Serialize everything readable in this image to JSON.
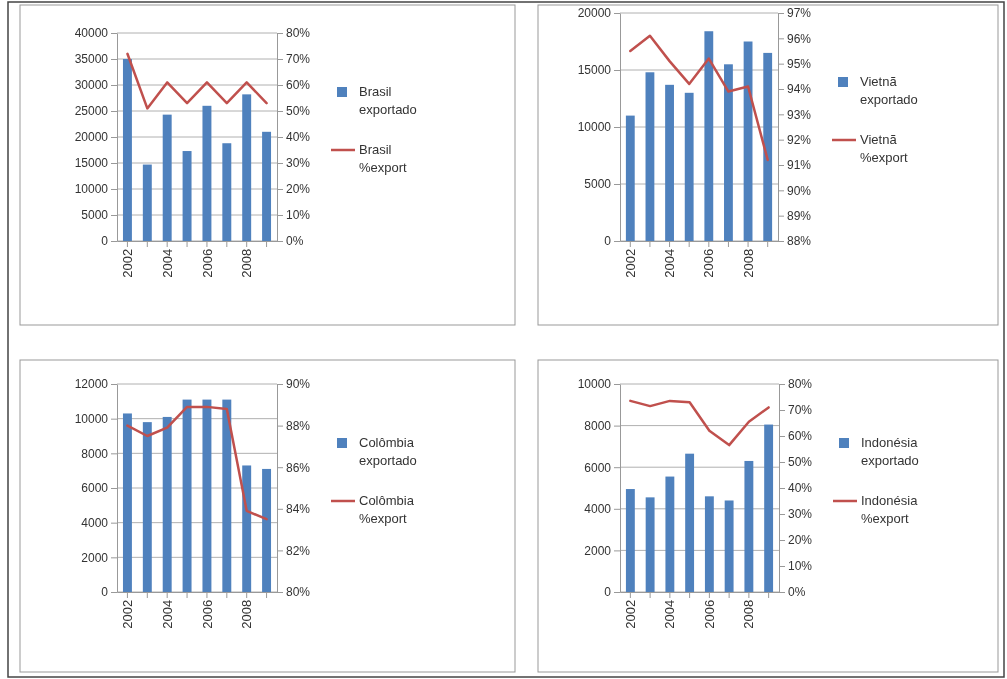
{
  "chart_data": [
    {
      "type": "bar",
      "categories": [
        "2002",
        null,
        "2004",
        null,
        "2006",
        null,
        "2008",
        null
      ],
      "ylim": [
        0,
        40000
      ],
      "yticks": [
        0,
        5000,
        10000,
        15000,
        20000,
        25000,
        30000,
        35000,
        40000
      ],
      "y2lim": [
        0,
        80
      ],
      "y2ticks": [
        {
          "value": 0,
          "label": "0%"
        },
        {
          "value": 10,
          "label": "10%"
        },
        {
          "value": 20,
          "label": "20%"
        },
        {
          "value": 30,
          "label": "30%"
        },
        {
          "value": 40,
          "label": "40%"
        },
        {
          "value": 50,
          "label": "50%"
        },
        {
          "value": 60,
          "label": "60%"
        },
        {
          "value": 70,
          "label": "70%"
        },
        {
          "value": 80,
          "label": "80%"
        }
      ],
      "grid": "y",
      "legend": "right",
      "series": [
        {
          "name": "Brasil exportado",
          "color": "#4f81bd",
          "values": [
            35000,
            14700,
            24300,
            17300,
            26000,
            18800,
            28200,
            21000
          ]
        },
        {
          "name": "Brasil %export",
          "type": "line",
          "axis": "y2",
          "color": "#c0504d",
          "values": [
            72,
            51,
            61,
            53,
            61,
            53,
            61,
            53
          ]
        }
      ]
    },
    {
      "type": "bar",
      "categories": [
        "2002",
        null,
        "2004",
        null,
        "2006",
        null,
        "2008",
        null
      ],
      "ylim": [
        0,
        20000
      ],
      "yticks": [
        0,
        5000,
        10000,
        15000,
        20000
      ],
      "y2lim": [
        88,
        97
      ],
      "y2ticks": [
        {
          "value": 88,
          "label": "88%"
        },
        {
          "value": 89,
          "label": "89%"
        },
        {
          "value": 90,
          "label": "90%"
        },
        {
          "value": 91,
          "label": "91%"
        },
        {
          "value": 92,
          "label": "92%"
        },
        {
          "value": 93,
          "label": "93%"
        },
        {
          "value": 94,
          "label": "94%"
        },
        {
          "value": 95,
          "label": "95%"
        },
        {
          "value": 96,
          "label": "96%"
        },
        {
          "value": 97,
          "label": "97%"
        }
      ],
      "grid": "y",
      "legend": "right",
      "series": [
        {
          "name": "Vietnã exportado",
          "color": "#4f81bd",
          "values": [
            11000,
            14800,
            13700,
            13000,
            18400,
            15500,
            17500,
            16500
          ]
        },
        {
          "name": "Vietnã %export",
          "type": "line",
          "axis": "y2",
          "color": "#c0504d",
          "values": [
            95.5,
            96.1,
            95.1,
            94.2,
            95.2,
            93.9,
            94.1,
            91.2
          ]
        }
      ]
    },
    {
      "type": "bar",
      "categories": [
        "2002",
        null,
        "2004",
        null,
        "2006",
        null,
        "2008",
        null
      ],
      "ylim": [
        0,
        12000
      ],
      "yticks": [
        0,
        2000,
        4000,
        6000,
        8000,
        10000,
        12000
      ],
      "y2lim": [
        80,
        90
      ],
      "y2ticks": [
        {
          "value": 80,
          "label": "80%"
        },
        {
          "value": 82,
          "label": "82%"
        },
        {
          "value": 84,
          "label": "84%"
        },
        {
          "value": 86,
          "label": "86%"
        },
        {
          "value": 88,
          "label": "88%"
        },
        {
          "value": 90,
          "label": "90%"
        }
      ],
      "grid": "y",
      "legend": "right",
      "series": [
        {
          "name": "Colômbia exportado",
          "color": "#4f81bd",
          "values": [
            10300,
            9800,
            10100,
            11100,
            11100,
            11100,
            7300,
            7100
          ]
        },
        {
          "name": "Colômbia %export",
          "type": "line",
          "axis": "y2",
          "color": "#c0504d",
          "values": [
            88.0,
            87.5,
            87.9,
            88.9,
            88.9,
            88.8,
            83.9,
            83.5
          ]
        }
      ]
    },
    {
      "type": "bar",
      "categories": [
        "2002",
        null,
        "2004",
        null,
        "2006",
        null,
        "2008",
        null
      ],
      "ylim": [
        0,
        10000
      ],
      "yticks": [
        0,
        2000,
        4000,
        6000,
        8000,
        10000
      ],
      "y2lim": [
        0,
        80
      ],
      "y2ticks": [
        {
          "value": 0,
          "label": "0%"
        },
        {
          "value": 10,
          "label": "10%"
        },
        {
          "value": 20,
          "label": "20%"
        },
        {
          "value": 30,
          "label": "30%"
        },
        {
          "value": 40,
          "label": "40%"
        },
        {
          "value": 50,
          "label": "50%"
        },
        {
          "value": 60,
          "label": "60%"
        },
        {
          "value": 70,
          "label": "70%"
        },
        {
          "value": 80,
          "label": "80%"
        }
      ],
      "grid": "y",
      "legend": "right",
      "series": [
        {
          "name": "Indonésia exportado",
          "color": "#4f81bd",
          "values": [
            4950,
            4550,
            5550,
            6650,
            4600,
            4400,
            6300,
            8050
          ]
        },
        {
          "name": "Indonésia %export",
          "type": "line",
          "axis": "y2",
          "color": "#c0504d",
          "values": [
            73.5,
            71.5,
            73.5,
            73,
            62,
            56.5,
            65.5,
            71
          ]
        }
      ]
    }
  ]
}
